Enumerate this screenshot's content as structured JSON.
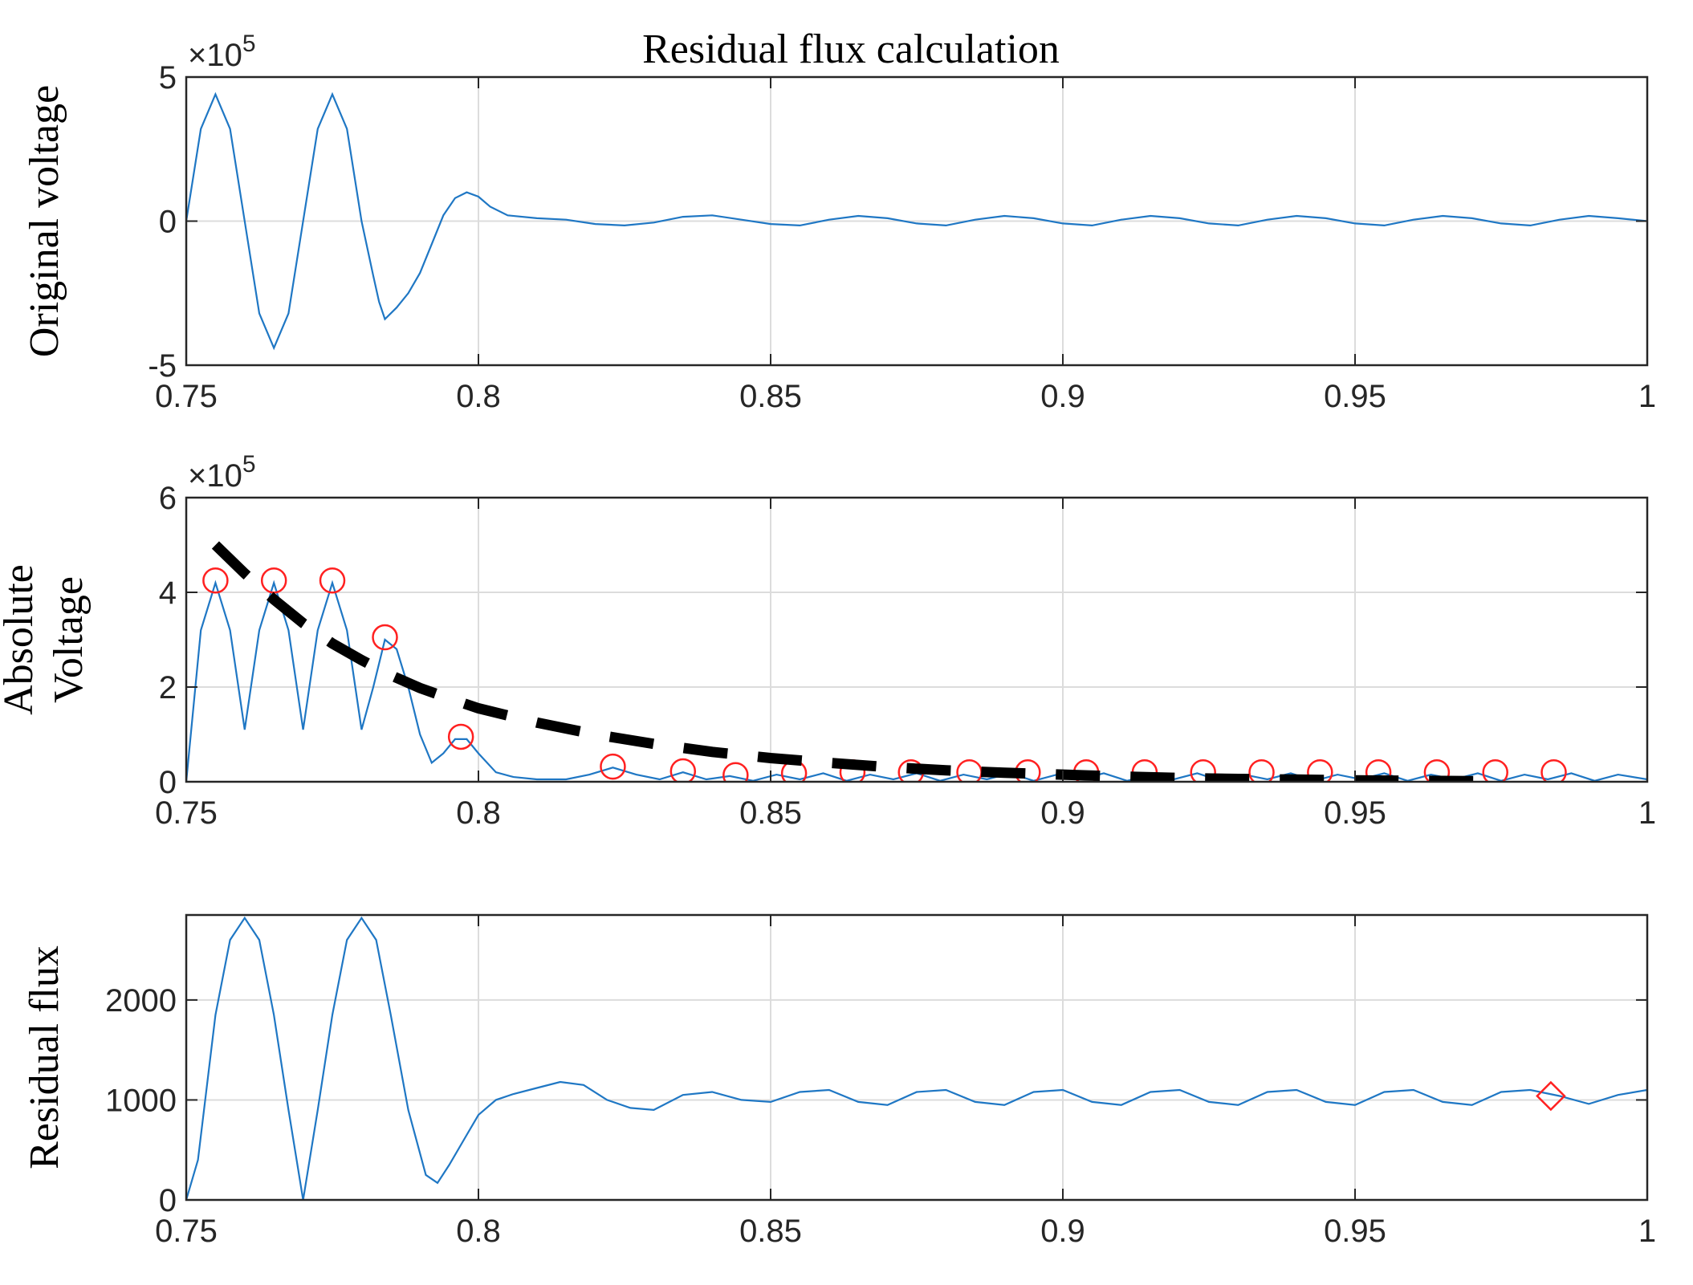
{
  "figure_title": "Residual flux calculation",
  "colors": {
    "signal": "#1f77c4",
    "markers": "#ff2020",
    "envelope": "#000000",
    "axis": "#262626",
    "grid": "#dcdcdc"
  },
  "chart_data": [
    {
      "type": "line",
      "title": "Residual flux calculation",
      "xlabel": "",
      "ylabel": "Original voltage",
      "xlim": [
        0.75,
        1.0
      ],
      "ylim": [
        -500000,
        500000
      ],
      "x_ticks": [
        0.75,
        0.8,
        0.85,
        0.9,
        0.95,
        1.0
      ],
      "x_tick_labels": [
        "0.75",
        "0.8",
        "0.85",
        "0.9",
        "0.95",
        "1"
      ],
      "y_ticks": [
        -500000,
        0,
        500000
      ],
      "y_tick_labels": [
        "-5",
        "0",
        "5"
      ],
      "y_exponent_label": "×10",
      "y_exponent_power": "5",
      "grid": true,
      "series": [
        {
          "name": "Original voltage",
          "x": [
            0.75,
            0.7525,
            0.755,
            0.7575,
            0.76,
            0.7625,
            0.765,
            0.7675,
            0.77,
            0.7725,
            0.775,
            0.7775,
            0.78,
            0.782,
            0.783,
            0.784,
            0.786,
            0.788,
            0.79,
            0.792,
            0.794,
            0.796,
            0.798,
            0.8,
            0.802,
            0.805,
            0.81,
            0.815,
            0.82,
            0.825,
            0.83,
            0.835,
            0.84,
            0.845,
            0.85,
            0.855,
            0.86,
            0.865,
            0.87,
            0.875,
            0.88,
            0.885,
            0.89,
            0.895,
            0.9,
            0.905,
            0.91,
            0.915,
            0.92,
            0.925,
            0.93,
            0.935,
            0.94,
            0.945,
            0.95,
            0.955,
            0.96,
            0.965,
            0.97,
            0.975,
            0.98,
            0.985,
            0.99,
            0.995,
            1.0
          ],
          "values": [
            0,
            320000,
            440000,
            320000,
            0,
            -320000,
            -440000,
            -320000,
            0,
            320000,
            440000,
            320000,
            0,
            -190000,
            -280000,
            -340000,
            -300000,
            -250000,
            -180000,
            -80000,
            20000,
            80000,
            100000,
            85000,
            50000,
            20000,
            10000,
            5000,
            -10000,
            -15000,
            -5000,
            15000,
            20000,
            5000,
            -10000,
            -15000,
            5000,
            18000,
            10000,
            -8000,
            -15000,
            5000,
            18000,
            10000,
            -8000,
            -15000,
            5000,
            18000,
            10000,
            -8000,
            -15000,
            5000,
            18000,
            10000,
            -8000,
            -15000,
            5000,
            18000,
            10000,
            -8000,
            -15000,
            5000,
            18000,
            10000,
            0
          ]
        }
      ]
    },
    {
      "type": "line",
      "title": "",
      "xlabel": "",
      "ylabel": "Absolute Voltage",
      "ylabel_lines": [
        "Absolute",
        "Voltage"
      ],
      "xlim": [
        0.75,
        1.0
      ],
      "ylim": [
        0,
        600000
      ],
      "x_ticks": [
        0.75,
        0.8,
        0.85,
        0.9,
        0.95,
        1.0
      ],
      "x_tick_labels": [
        "0.75",
        "0.8",
        "0.85",
        "0.9",
        "0.95",
        "1"
      ],
      "y_ticks": [
        0,
        200000,
        400000,
        600000
      ],
      "y_tick_labels": [
        "0",
        "2",
        "4",
        "6"
      ],
      "y_exponent_label": "×10",
      "y_exponent_power": "5",
      "grid": true,
      "series": [
        {
          "name": "Absolute voltage",
          "style": "solid",
          "x": [
            0.75,
            0.7525,
            0.755,
            0.7575,
            0.76,
            0.7625,
            0.765,
            0.7675,
            0.77,
            0.7725,
            0.775,
            0.7775,
            0.78,
            0.782,
            0.784,
            0.786,
            0.788,
            0.79,
            0.792,
            0.794,
            0.796,
            0.798,
            0.8,
            0.803,
            0.806,
            0.81,
            0.815,
            0.819,
            0.823,
            0.827,
            0.831,
            0.835,
            0.839,
            0.843,
            0.847,
            0.851,
            0.855,
            0.859,
            0.863,
            0.867,
            0.871,
            0.875,
            0.879,
            0.883,
            0.887,
            0.891,
            0.895,
            0.899,
            0.903,
            0.907,
            0.911,
            0.915,
            0.919,
            0.923,
            0.927,
            0.931,
            0.935,
            0.939,
            0.943,
            0.947,
            0.951,
            0.955,
            0.959,
            0.963,
            0.967,
            0.971,
            0.975,
            0.979,
            0.983,
            0.987,
            0.991,
            0.995,
            1.0
          ],
          "values": [
            0,
            320000,
            420000,
            320000,
            110000,
            320000,
            420000,
            320000,
            110000,
            320000,
            420000,
            320000,
            110000,
            200000,
            300000,
            280000,
            200000,
            100000,
            40000,
            60000,
            90000,
            90000,
            60000,
            20000,
            10000,
            5000,
            5000,
            15000,
            30000,
            15000,
            5000,
            20000,
            5000,
            12000,
            2000,
            15000,
            5000,
            18000,
            2000,
            15000,
            5000,
            18000,
            2000,
            15000,
            5000,
            18000,
            2000,
            15000,
            5000,
            18000,
            2000,
            15000,
            5000,
            18000,
            2000,
            15000,
            5000,
            18000,
            2000,
            15000,
            5000,
            18000,
            2000,
            15000,
            5000,
            18000,
            2000,
            15000,
            5000,
            18000,
            2000,
            15000,
            5000
          ]
        },
        {
          "name": "Peak markers",
          "style": "circle-markers",
          "x": [
            0.755,
            0.765,
            0.775,
            0.784,
            0.797,
            0.823,
            0.835,
            0.844,
            0.854,
            0.864,
            0.874,
            0.884,
            0.894,
            0.904,
            0.914,
            0.924,
            0.934,
            0.944,
            0.954,
            0.964,
            0.974,
            0.984
          ],
          "values": [
            425000,
            425000,
            425000,
            305000,
            95000,
            32000,
            22000,
            14000,
            18000,
            20000,
            20000,
            20000,
            20000,
            20000,
            20000,
            20000,
            20000,
            20000,
            20000,
            20000,
            20000,
            20000
          ]
        },
        {
          "name": "Decay envelope",
          "style": "dashed",
          "x": [
            0.755,
            0.76,
            0.765,
            0.77,
            0.775,
            0.78,
            0.785,
            0.79,
            0.795,
            0.8,
            0.81,
            0.82,
            0.83,
            0.84,
            0.85,
            0.86,
            0.87,
            0.88,
            0.89,
            0.9,
            0.91,
            0.92,
            0.93,
            0.94,
            0.95,
            0.96,
            0.975
          ],
          "values": [
            500000,
            440000,
            385000,
            335000,
            292000,
            257000,
            225000,
            198000,
            176000,
            155000,
            125000,
            100000,
            80000,
            63000,
            50000,
            40000,
            31000,
            24000,
            19000,
            15000,
            11000,
            8000,
            6000,
            4500,
            3000,
            2000,
            1000
          ]
        }
      ]
    },
    {
      "type": "line",
      "title": "",
      "xlabel": "",
      "ylabel": "Residual flux",
      "xlim": [
        0.75,
        1.0
      ],
      "ylim": [
        0,
        2850
      ],
      "x_ticks": [
        0.75,
        0.8,
        0.85,
        0.9,
        0.95,
        1.0
      ],
      "x_tick_labels": [
        "0.75",
        "0.8",
        "0.85",
        "0.9",
        "0.95",
        "1"
      ],
      "y_ticks": [
        0,
        1000,
        2000
      ],
      "y_tick_labels": [
        "0",
        "1000",
        "2000"
      ],
      "grid": true,
      "series": [
        {
          "name": "Residual flux",
          "style": "solid",
          "x": [
            0.75,
            0.752,
            0.755,
            0.7575,
            0.76,
            0.7625,
            0.765,
            0.7675,
            0.77,
            0.7725,
            0.775,
            0.7775,
            0.78,
            0.7825,
            0.785,
            0.788,
            0.791,
            0.793,
            0.795,
            0.798,
            0.8,
            0.803,
            0.806,
            0.81,
            0.814,
            0.818,
            0.822,
            0.826,
            0.83,
            0.835,
            0.84,
            0.845,
            0.85,
            0.855,
            0.86,
            0.865,
            0.87,
            0.875,
            0.88,
            0.885,
            0.89,
            0.895,
            0.9,
            0.905,
            0.91,
            0.915,
            0.92,
            0.925,
            0.93,
            0.935,
            0.94,
            0.945,
            0.95,
            0.955,
            0.96,
            0.965,
            0.97,
            0.975,
            0.98,
            0.985,
            0.99,
            0.995,
            1.0
          ],
          "values": [
            0,
            400,
            1850,
            2600,
            2820,
            2600,
            1850,
            900,
            0,
            900,
            1850,
            2600,
            2820,
            2600,
            1850,
            900,
            250,
            170,
            350,
            650,
            850,
            1000,
            1060,
            1120,
            1180,
            1150,
            1000,
            920,
            900,
            1050,
            1080,
            1000,
            980,
            1080,
            1100,
            980,
            950,
            1080,
            1100,
            980,
            950,
            1080,
            1100,
            980,
            950,
            1080,
            1100,
            980,
            950,
            1080,
            1100,
            980,
            950,
            1080,
            1100,
            980,
            950,
            1080,
            1100,
            1040,
            960,
            1050,
            1100
          ]
        },
        {
          "name": "Residual flux point",
          "style": "diamond-marker",
          "x": [
            0.9835
          ],
          "values": [
            1040
          ]
        }
      ]
    }
  ]
}
